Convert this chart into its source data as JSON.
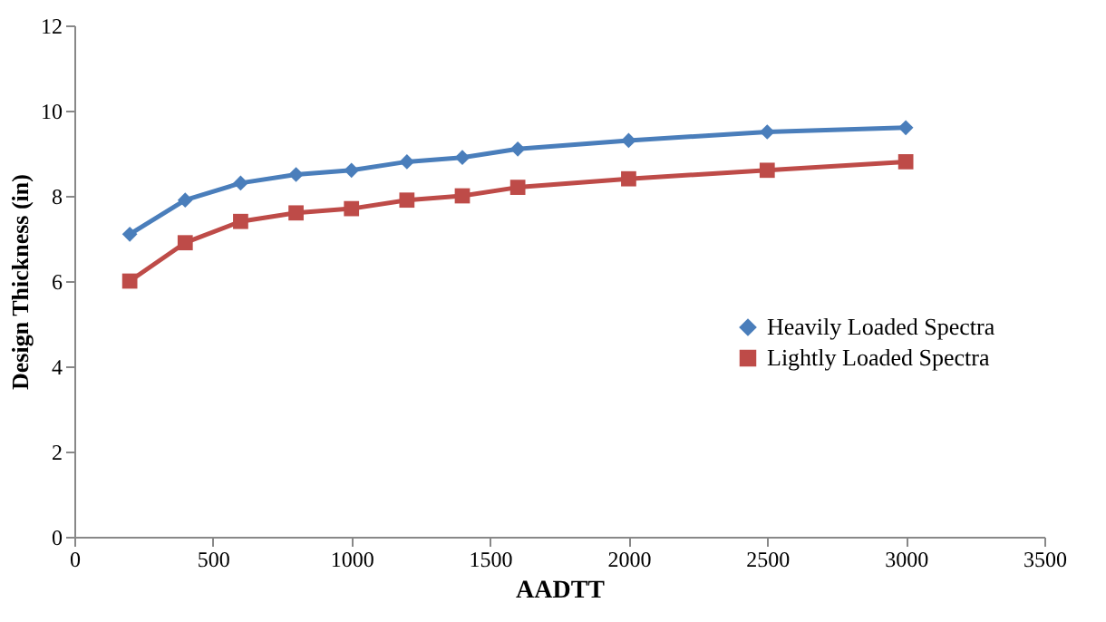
{
  "chart_data": {
    "type": "line",
    "xlabel": "AADTT",
    "ylabel": "Design Thickness (in)",
    "x": [
      200,
      400,
      600,
      800,
      1000,
      1200,
      1400,
      1600,
      2000,
      2500,
      3000
    ],
    "series": [
      {
        "name": "Heavily Loaded Spectra",
        "color": "#4a7ebb",
        "marker": "diamond",
        "values": [
          7.1,
          7.9,
          8.3,
          8.5,
          8.6,
          8.8,
          8.9,
          9.1,
          9.3,
          9.5,
          9.6
        ]
      },
      {
        "name": "Lightly Loaded Spectra",
        "color": "#be4b48",
        "marker": "square",
        "values": [
          6.0,
          6.9,
          7.4,
          7.6,
          7.7,
          7.9,
          8.0,
          8.2,
          8.4,
          8.6,
          8.8
        ]
      }
    ],
    "xlim": [
      0,
      3500
    ],
    "xticks": [
      0,
      500,
      1000,
      1500,
      2000,
      2500,
      3000,
      3500
    ],
    "ylim": [
      0,
      12
    ],
    "yticks": [
      0,
      2,
      4,
      6,
      8,
      10,
      12
    ],
    "grid": false,
    "legend": "right",
    "line_style": "solid"
  }
}
